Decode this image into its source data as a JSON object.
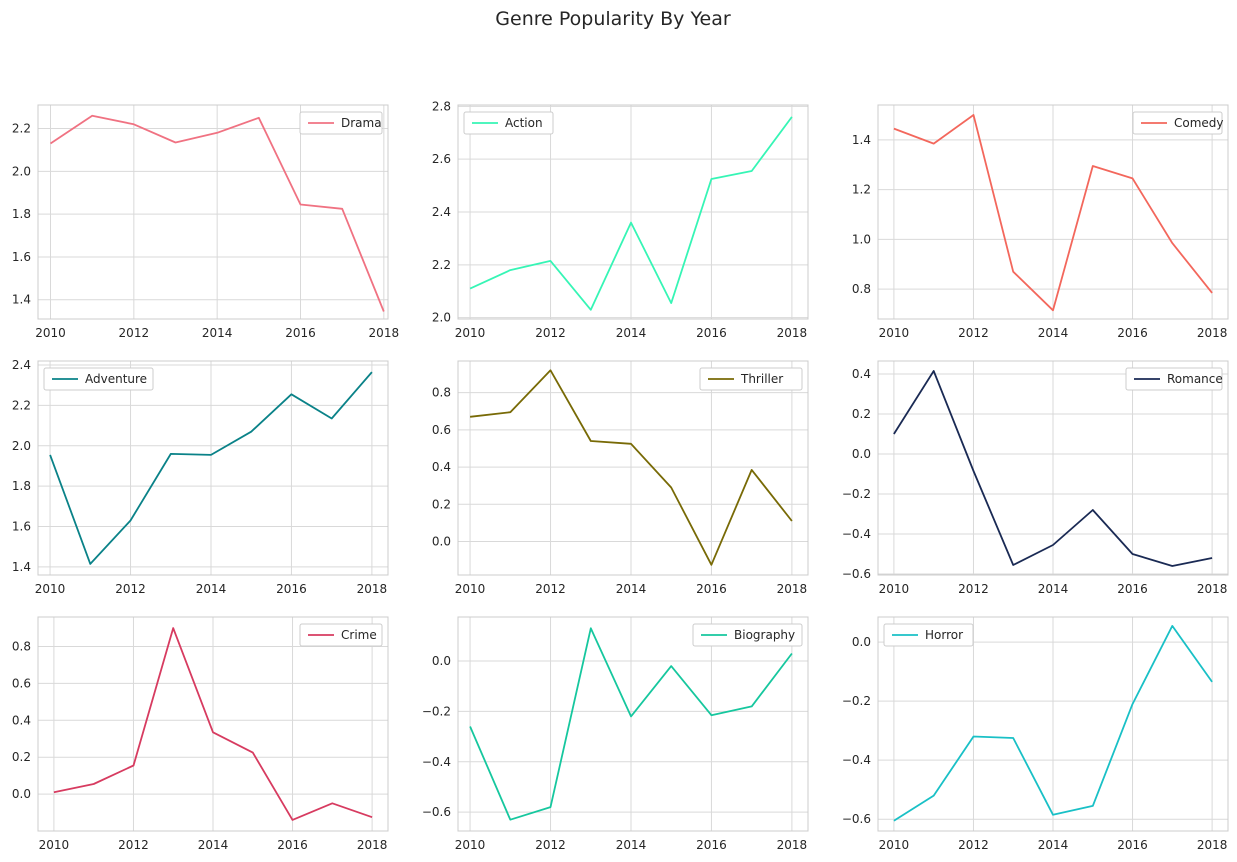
{
  "title": "Genre Popularity By Year",
  "chart_data": [
    {
      "type": "line",
      "series": [
        {
          "name": "Drama",
          "color": "#f07282",
          "x": [
            2010,
            2011,
            2012,
            2013,
            2014,
            2015,
            2016,
            2017,
            2018
          ],
          "values": [
            2.13,
            2.26,
            2.22,
            2.135,
            2.18,
            2.25,
            1.845,
            1.825,
            1.345
          ]
        }
      ],
      "xlim": [
        2009.7,
        2018.1
      ],
      "ylim": [
        1.31,
        2.31
      ],
      "yticks": [
        1.4,
        1.6,
        1.8,
        2.0,
        2.2
      ],
      "yticklabels": [
        "1.4",
        "1.6",
        "1.8",
        "2.0",
        "2.2"
      ],
      "xticks": [
        2010,
        2012,
        2014,
        2016,
        2018
      ],
      "xticklabels": [
        "2010",
        "2012",
        "2014",
        "2016",
        "2018"
      ],
      "legend": "top-right",
      "grid": true
    },
    {
      "type": "line",
      "series": [
        {
          "name": "Action",
          "color": "#36f5b5",
          "x": [
            2010,
            2011,
            2012,
            2013,
            2014,
            2015,
            2016,
            2017,
            2018
          ],
          "values": [
            2.11,
            2.18,
            2.215,
            2.03,
            2.36,
            2.055,
            2.525,
            2.555,
            2.76
          ]
        }
      ],
      "xlim": [
        2009.7,
        2018.4
      ],
      "ylim": [
        1.995,
        2.805
      ],
      "yticks": [
        2.0,
        2.2,
        2.4,
        2.6,
        2.8
      ],
      "yticklabels": [
        "2.0",
        "2.2",
        "2.4",
        "2.6",
        "2.8"
      ],
      "xticks": [
        2010,
        2012,
        2014,
        2016,
        2018
      ],
      "xticklabels": [
        "2010",
        "2012",
        "2014",
        "2016",
        "2018"
      ],
      "legend": "top-left",
      "grid": true
    },
    {
      "type": "line",
      "series": [
        {
          "name": "Comedy",
          "color": "#f3675c",
          "x": [
            2010,
            2011,
            2012,
            2013,
            2014,
            2015,
            2016,
            2017,
            2018
          ],
          "values": [
            1.445,
            1.385,
            1.5,
            0.87,
            0.715,
            1.295,
            1.245,
            0.985,
            0.785
          ]
        }
      ],
      "xlim": [
        2009.6,
        2018.4
      ],
      "ylim": [
        0.68,
        1.54
      ],
      "yticks": [
        0.8,
        1.0,
        1.2,
        1.4
      ],
      "yticklabels": [
        "0.8",
        "1.0",
        "1.2",
        "1.4"
      ],
      "xticks": [
        2010,
        2012,
        2014,
        2016,
        2018
      ],
      "xticklabels": [
        "2010",
        "2012",
        "2014",
        "2016",
        "2018"
      ],
      "legend": "top-right",
      "grid": true
    },
    {
      "type": "line",
      "series": [
        {
          "name": "Adventure",
          "color": "#0a8288",
          "x": [
            2010,
            2011,
            2012,
            2013,
            2014,
            2015,
            2016,
            2017,
            2018
          ],
          "values": [
            1.955,
            1.415,
            1.63,
            1.96,
            1.955,
            2.07,
            2.255,
            2.135,
            2.365
          ]
        }
      ],
      "xlim": [
        2009.7,
        2018.4
      ],
      "ylim": [
        1.36,
        2.42
      ],
      "yticks": [
        1.4,
        1.6,
        1.8,
        2.0,
        2.2,
        2.4
      ],
      "yticklabels": [
        "1.4",
        "1.6",
        "1.8",
        "2.0",
        "2.2",
        "2.4"
      ],
      "xticks": [
        2010,
        2012,
        2014,
        2016,
        2018
      ],
      "xticklabels": [
        "2010",
        "2012",
        "2014",
        "2016",
        "2018"
      ],
      "legend": "top-left",
      "grid": true
    },
    {
      "type": "line",
      "series": [
        {
          "name": "Thriller",
          "color": "#786a06",
          "x": [
            2010,
            2011,
            2012,
            2013,
            2014,
            2015,
            2016,
            2017,
            2018
          ],
          "values": [
            0.67,
            0.695,
            0.92,
            0.54,
            0.525,
            0.29,
            -0.125,
            0.385,
            0.11
          ]
        }
      ],
      "xlim": [
        2009.7,
        2018.4
      ],
      "ylim": [
        -0.18,
        0.97
      ],
      "yticks": [
        0.0,
        0.2,
        0.4,
        0.6,
        0.8
      ],
      "yticklabels": [
        "0.0",
        "0.2",
        "0.4",
        "0.6",
        "0.8"
      ],
      "xticks": [
        2010,
        2012,
        2014,
        2016,
        2018
      ],
      "xticklabels": [
        "2010",
        "2012",
        "2014",
        "2016",
        "2018"
      ],
      "legend": "top-right",
      "grid": true
    },
    {
      "type": "line",
      "series": [
        {
          "name": "Romance",
          "color": "#1a2a54",
          "x": [
            2010,
            2011,
            2012,
            2013,
            2014,
            2015,
            2016,
            2017,
            2018
          ],
          "values": [
            0.1,
            0.415,
            -0.085,
            -0.555,
            -0.455,
            -0.28,
            -0.5,
            -0.56,
            -0.52
          ]
        }
      ],
      "xlim": [
        2009.6,
        2018.4
      ],
      "ylim": [
        -0.605,
        0.465
      ],
      "yticks": [
        -0.6,
        -0.4,
        -0.2,
        0.0,
        0.2,
        0.4
      ],
      "yticklabels": [
        "−0.6",
        "−0.4",
        "−0.2",
        "0.0",
        "0.2",
        "0.4"
      ],
      "xticks": [
        2010,
        2012,
        2014,
        2016,
        2018
      ],
      "xticklabels": [
        "2010",
        "2012",
        "2014",
        "2016",
        "2018"
      ],
      "legend": "top-right",
      "grid": true
    },
    {
      "type": "line",
      "series": [
        {
          "name": "Crime",
          "color": "#d73b60",
          "x": [
            2010,
            2011,
            2012,
            2013,
            2014,
            2015,
            2016,
            2017,
            2018
          ],
          "values": [
            0.01,
            0.055,
            0.155,
            0.9,
            0.335,
            0.225,
            -0.14,
            -0.05,
            -0.125
          ]
        }
      ],
      "xlim": [
        2009.6,
        2018.4
      ],
      "ylim": [
        -0.2,
        0.96
      ],
      "yticks": [
        0.0,
        0.2,
        0.4,
        0.6,
        0.8
      ],
      "yticklabels": [
        "0.0",
        "0.2",
        "0.4",
        "0.6",
        "0.8"
      ],
      "xticks": [
        2010,
        2012,
        2014,
        2016,
        2018
      ],
      "xticklabels": [
        "2010",
        "2012",
        "2014",
        "2016",
        "2018"
      ],
      "legend": "top-right",
      "grid": true
    },
    {
      "type": "line",
      "series": [
        {
          "name": "Biography",
          "color": "#16c79e",
          "x": [
            2010,
            2011,
            2012,
            2013,
            2014,
            2015,
            2016,
            2017,
            2018
          ],
          "values": [
            -0.26,
            -0.63,
            -0.58,
            0.13,
            -0.22,
            -0.02,
            -0.215,
            -0.18,
            0.03
          ]
        }
      ],
      "xlim": [
        2009.7,
        2018.4
      ],
      "ylim": [
        -0.675,
        0.175
      ],
      "yticks": [
        -0.6,
        -0.4,
        -0.2,
        0.0
      ],
      "yticklabels": [
        "−0.6",
        "−0.4",
        "−0.2",
        "0.0"
      ],
      "xticks": [
        2010,
        2012,
        2014,
        2016,
        2018
      ],
      "xticklabels": [
        "2010",
        "2012",
        "2014",
        "2016",
        "2018"
      ],
      "legend": "top-right",
      "grid": true
    },
    {
      "type": "line",
      "series": [
        {
          "name": "Horror",
          "color": "#19c0c6",
          "x": [
            2010,
            2011,
            2012,
            2013,
            2014,
            2015,
            2016,
            2017,
            2018
          ],
          "values": [
            -0.605,
            -0.52,
            -0.32,
            -0.325,
            -0.585,
            -0.555,
            -0.21,
            0.055,
            -0.135
          ]
        }
      ],
      "xlim": [
        2009.6,
        2018.4
      ],
      "ylim": [
        -0.64,
        0.085
      ],
      "yticks": [
        -0.6,
        -0.4,
        -0.2,
        0.0
      ],
      "yticklabels": [
        "−0.6",
        "−0.4",
        "−0.2",
        "0.0"
      ],
      "xticks": [
        2010,
        2012,
        2014,
        2016,
        2018
      ],
      "xticklabels": [
        "2010",
        "2012",
        "2014",
        "2016",
        "2018"
      ],
      "legend": "top-left",
      "grid": true
    }
  ]
}
